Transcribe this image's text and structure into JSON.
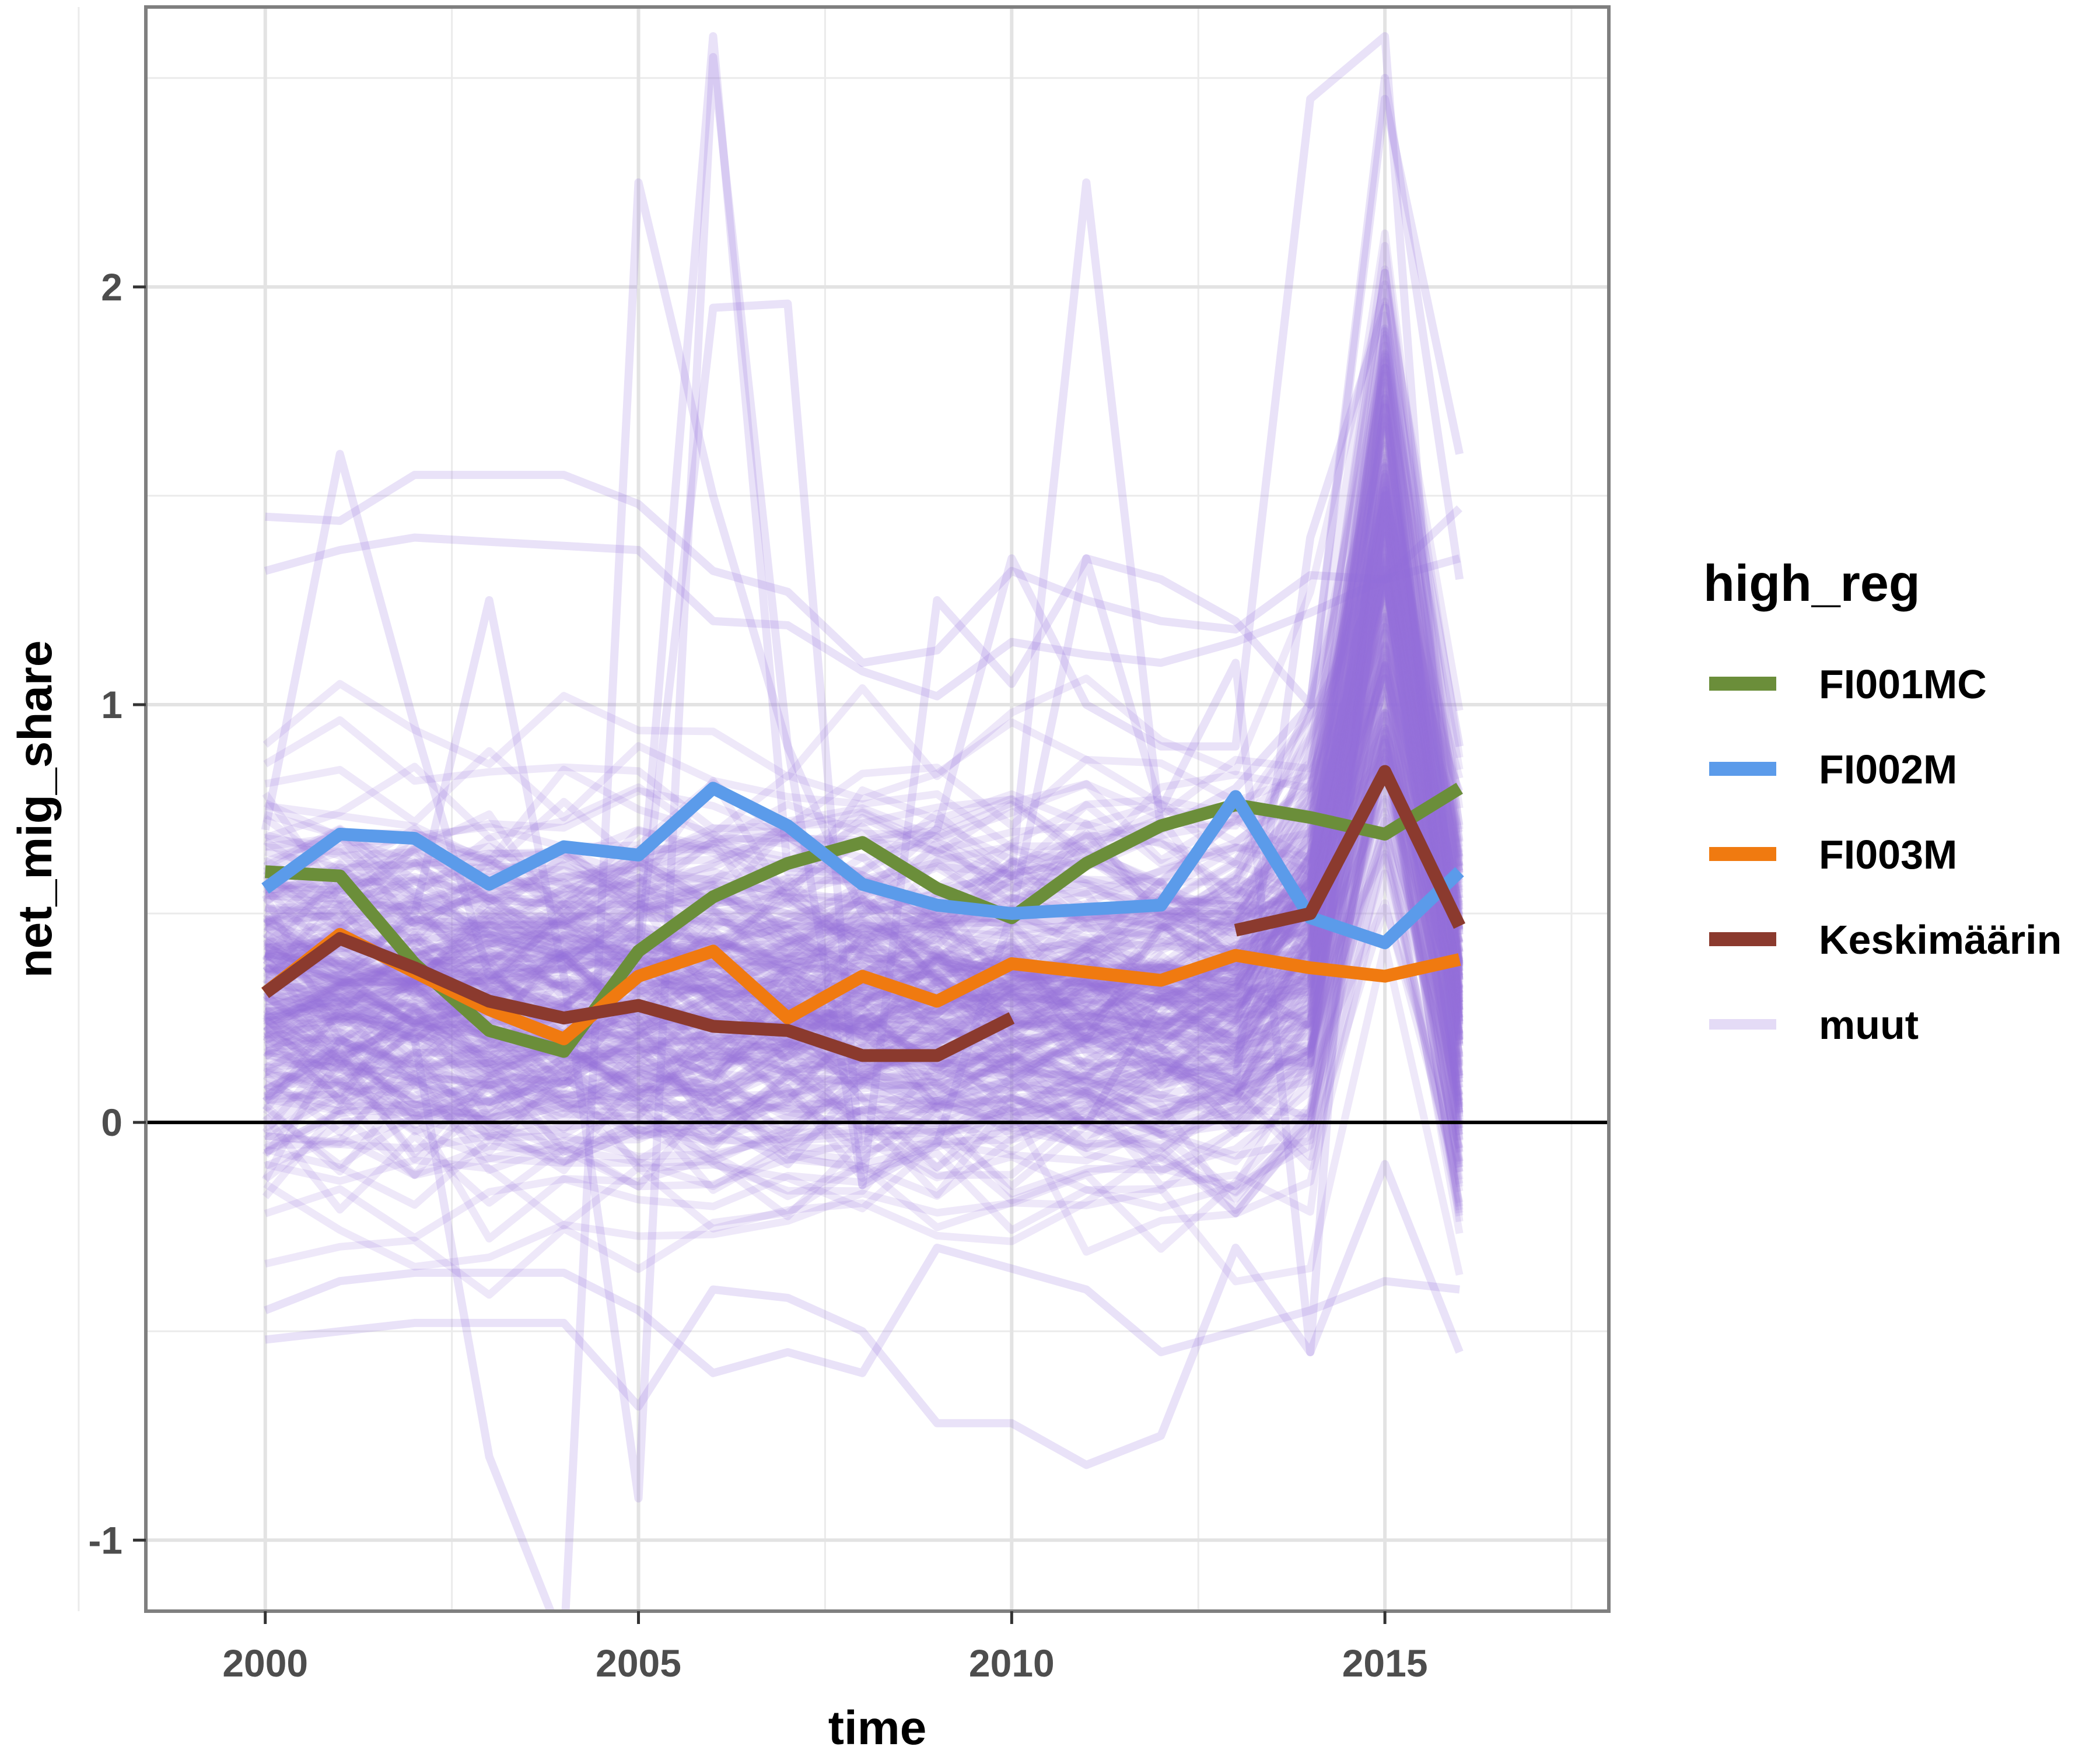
{
  "chart_data": {
    "type": "line",
    "xlabel": "time",
    "ylabel": "net_mig_share",
    "xlim": [
      1998.4,
      2018.0
    ],
    "ylim": [
      -1.17,
      2.67
    ],
    "x_ticks": [
      2000,
      2005,
      2010,
      2015
    ],
    "x_tick_labels": [
      "2000",
      "2005",
      "2010",
      "2015"
    ],
    "y_ticks": [
      -1,
      0,
      1,
      2
    ],
    "y_tick_labels": [
      "-1",
      "0",
      "1",
      "2"
    ],
    "grid": true,
    "reference_line_y": 0,
    "legend": {
      "title": "high_reg",
      "position": "right",
      "entries": [
        "FI001MC",
        "FI002M",
        "FI003M",
        "Keskimäärin",
        "muut"
      ]
    },
    "colors": {
      "FI001MC": "#6b8e3a",
      "FI002M": "#5b9bea",
      "FI003M": "#f07a10",
      "Keskimäärin": "#8b3a2e",
      "muut": "#9370db"
    },
    "series": [
      {
        "name": "FI001MC",
        "x": [
          2000,
          2001,
          2002,
          2003,
          2004,
          2005,
          2006,
          2007,
          2008,
          2009,
          2010,
          2011,
          2012,
          2013,
          2014,
          2015,
          2016
        ],
        "values": [
          0.6,
          0.59,
          0.38,
          0.22,
          0.17,
          0.41,
          0.54,
          0.62,
          0.67,
          0.56,
          0.49,
          0.62,
          0.71,
          0.76,
          0.73,
          0.69,
          0.8
        ]
      },
      {
        "name": "FI002M",
        "x": [
          2000,
          2001,
          2002,
          2003,
          2004,
          2005,
          2006,
          2007,
          2008,
          2009,
          2010,
          2011,
          2012,
          2013,
          2014,
          2015,
          2016
        ],
        "values": [
          0.56,
          0.69,
          0.68,
          0.57,
          0.66,
          0.64,
          0.8,
          0.71,
          0.57,
          0.52,
          0.5,
          0.51,
          0.52,
          0.78,
          0.49,
          0.43,
          0.6
        ]
      },
      {
        "name": "FI003M",
        "x": [
          2000,
          2001,
          2002,
          2003,
          2004,
          2005,
          2006,
          2007,
          2008,
          2009,
          2010,
          2011,
          2012,
          2013,
          2014,
          2015,
          2016
        ],
        "values": [
          0.31,
          0.45,
          0.36,
          0.27,
          0.2,
          0.35,
          0.41,
          0.25,
          0.35,
          0.29,
          0.38,
          0.36,
          0.34,
          0.4,
          0.37,
          0.35,
          0.39
        ]
      },
      {
        "name": "Keskimäärin",
        "segments": [
          {
            "x": [
              2000,
              2001,
              2002,
              2003,
              2004,
              2005,
              2006,
              2007,
              2008,
              2009,
              2010
            ],
            "values": [
              0.31,
              0.44,
              0.37,
              0.29,
              0.25,
              0.28,
              0.23,
              0.22,
              0.16,
              0.16,
              0.25
            ]
          },
          {
            "x": [
              2013,
              2014,
              2015,
              2016
            ],
            "values": [
              0.46,
              0.5,
              0.84,
              0.47
            ]
          }
        ]
      },
      {
        "name": "muut",
        "x": [
          2000,
          2001,
          2002,
          2003,
          2004,
          2005,
          2006,
          2007,
          2008,
          2009,
          2010,
          2011,
          2012,
          2013,
          2014,
          2015,
          2016
        ],
        "line_count": 220,
        "highlighted_lines": [
          [
            1.45,
            1.44,
            1.55,
            1.55,
            1.55,
            1.48,
            1.32,
            1.27,
            1.1,
            1.13,
            1.32,
            1.25,
            1.2,
            1.18,
            1.31,
            1.3,
            1.47
          ],
          [
            1.32,
            1.37,
            1.4,
            1.39,
            1.38,
            1.37,
            1.2,
            1.19,
            1.08,
            1.02,
            1.15,
            1.12,
            1.1,
            1.15,
            1.22,
            1.3,
            1.35
          ],
          [
            0.7,
            1.6,
            0.95,
            0.35,
            0.4,
            0.45,
            2.6,
            0.6,
            0.6,
            0.7,
            1.35,
            1.0,
            0.9,
            0.9,
            2.45,
            2.6,
            0.2
          ],
          [
            0.4,
            0.35,
            0.5,
            1.25,
            0.35,
            -0.9,
            2.55,
            0.9,
            0.5,
            0.55,
            0.6,
            2.25,
            0.7,
            0.8,
            1.0,
            2.5,
            1.3
          ],
          [
            0.25,
            0.3,
            0.2,
            -0.8,
            -1.25,
            2.25,
            1.5,
            0.9,
            -0.15,
            -0.05,
            0.5,
            1.35,
            0.75,
            1.1,
            -0.55,
            1.9,
            0.9
          ],
          [
            0.6,
            0.7,
            0.55,
            0.45,
            0.4,
            0.4,
            1.95,
            1.96,
            -0.15,
            1.25,
            1.05,
            1.35,
            1.3,
            1.2,
            1.0,
            2.45,
            1.6
          ],
          [
            -0.52,
            -0.5,
            -0.48,
            -0.48,
            -0.48,
            -0.68,
            -0.4,
            -0.42,
            -0.5,
            -0.72,
            -0.72,
            -0.82,
            -0.75,
            -0.3,
            -0.55,
            -0.1,
            -0.55
          ],
          [
            -0.45,
            -0.38,
            -0.36,
            -0.36,
            -0.36,
            -0.45,
            -0.6,
            -0.55,
            -0.6,
            -0.3,
            -0.35,
            -0.4,
            -0.55,
            -0.5,
            -0.45,
            -0.38,
            -0.4
          ],
          [
            0.05,
            0.2,
            0.1,
            0.05,
            0.1,
            0.05,
            0.0,
            -0.1,
            0.1,
            0.05,
            0.1,
            0.2,
            0.15,
            0.1,
            1.4,
            1.95,
            0.0
          ]
        ]
      }
    ]
  }
}
